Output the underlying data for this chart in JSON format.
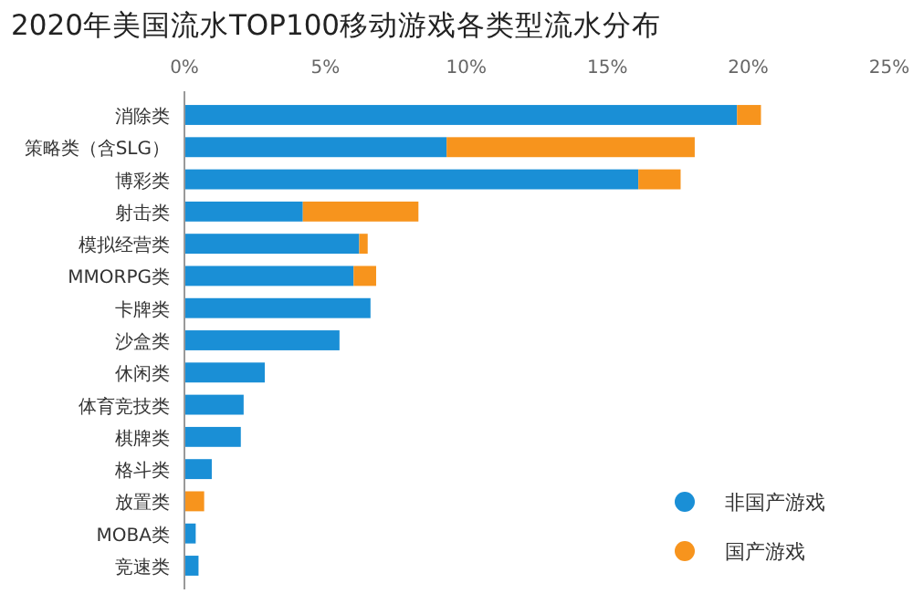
{
  "chart_data": {
    "type": "bar",
    "title": "2020年美国流水TOP100移动游戏各类型流水分布",
    "orientation": "horizontal",
    "stacked": true,
    "categories": [
      "消除类",
      "策略类（含SLG）",
      "博彩类",
      "射击类",
      "模拟经营类",
      "MMORPG类",
      "卡牌类",
      "沙盒类",
      "休闲类",
      "体育竞技类",
      "棋牌类",
      "格斗类",
      "放置类",
      "MOBA类",
      "竞速类"
    ],
    "series": [
      {
        "name": "非国产游戏",
        "color": "#1a8fd6",
        "values": [
          19.6,
          9.3,
          16.1,
          4.2,
          6.2,
          6.0,
          6.6,
          5.5,
          2.85,
          2.1,
          2.0,
          0.97,
          null,
          0.4,
          0.5
        ]
      },
      {
        "name": "国产游戏",
        "color": "#f7941d",
        "values": [
          0.85,
          8.8,
          1.5,
          4.1,
          0.3,
          0.8,
          null,
          null,
          null,
          null,
          null,
          null,
          0.7,
          null,
          null
        ]
      }
    ],
    "xlim": [
      0,
      25
    ],
    "xticks": [
      {
        "value": 0,
        "label": "0%"
      },
      {
        "value": 5,
        "label": "5%"
      },
      {
        "value": 10,
        "label": "10%"
      },
      {
        "value": 15,
        "label": "15%"
      },
      {
        "value": 20,
        "label": "20%"
      },
      {
        "value": 25,
        "label": "25%"
      }
    ],
    "legend": "bottom right"
  }
}
